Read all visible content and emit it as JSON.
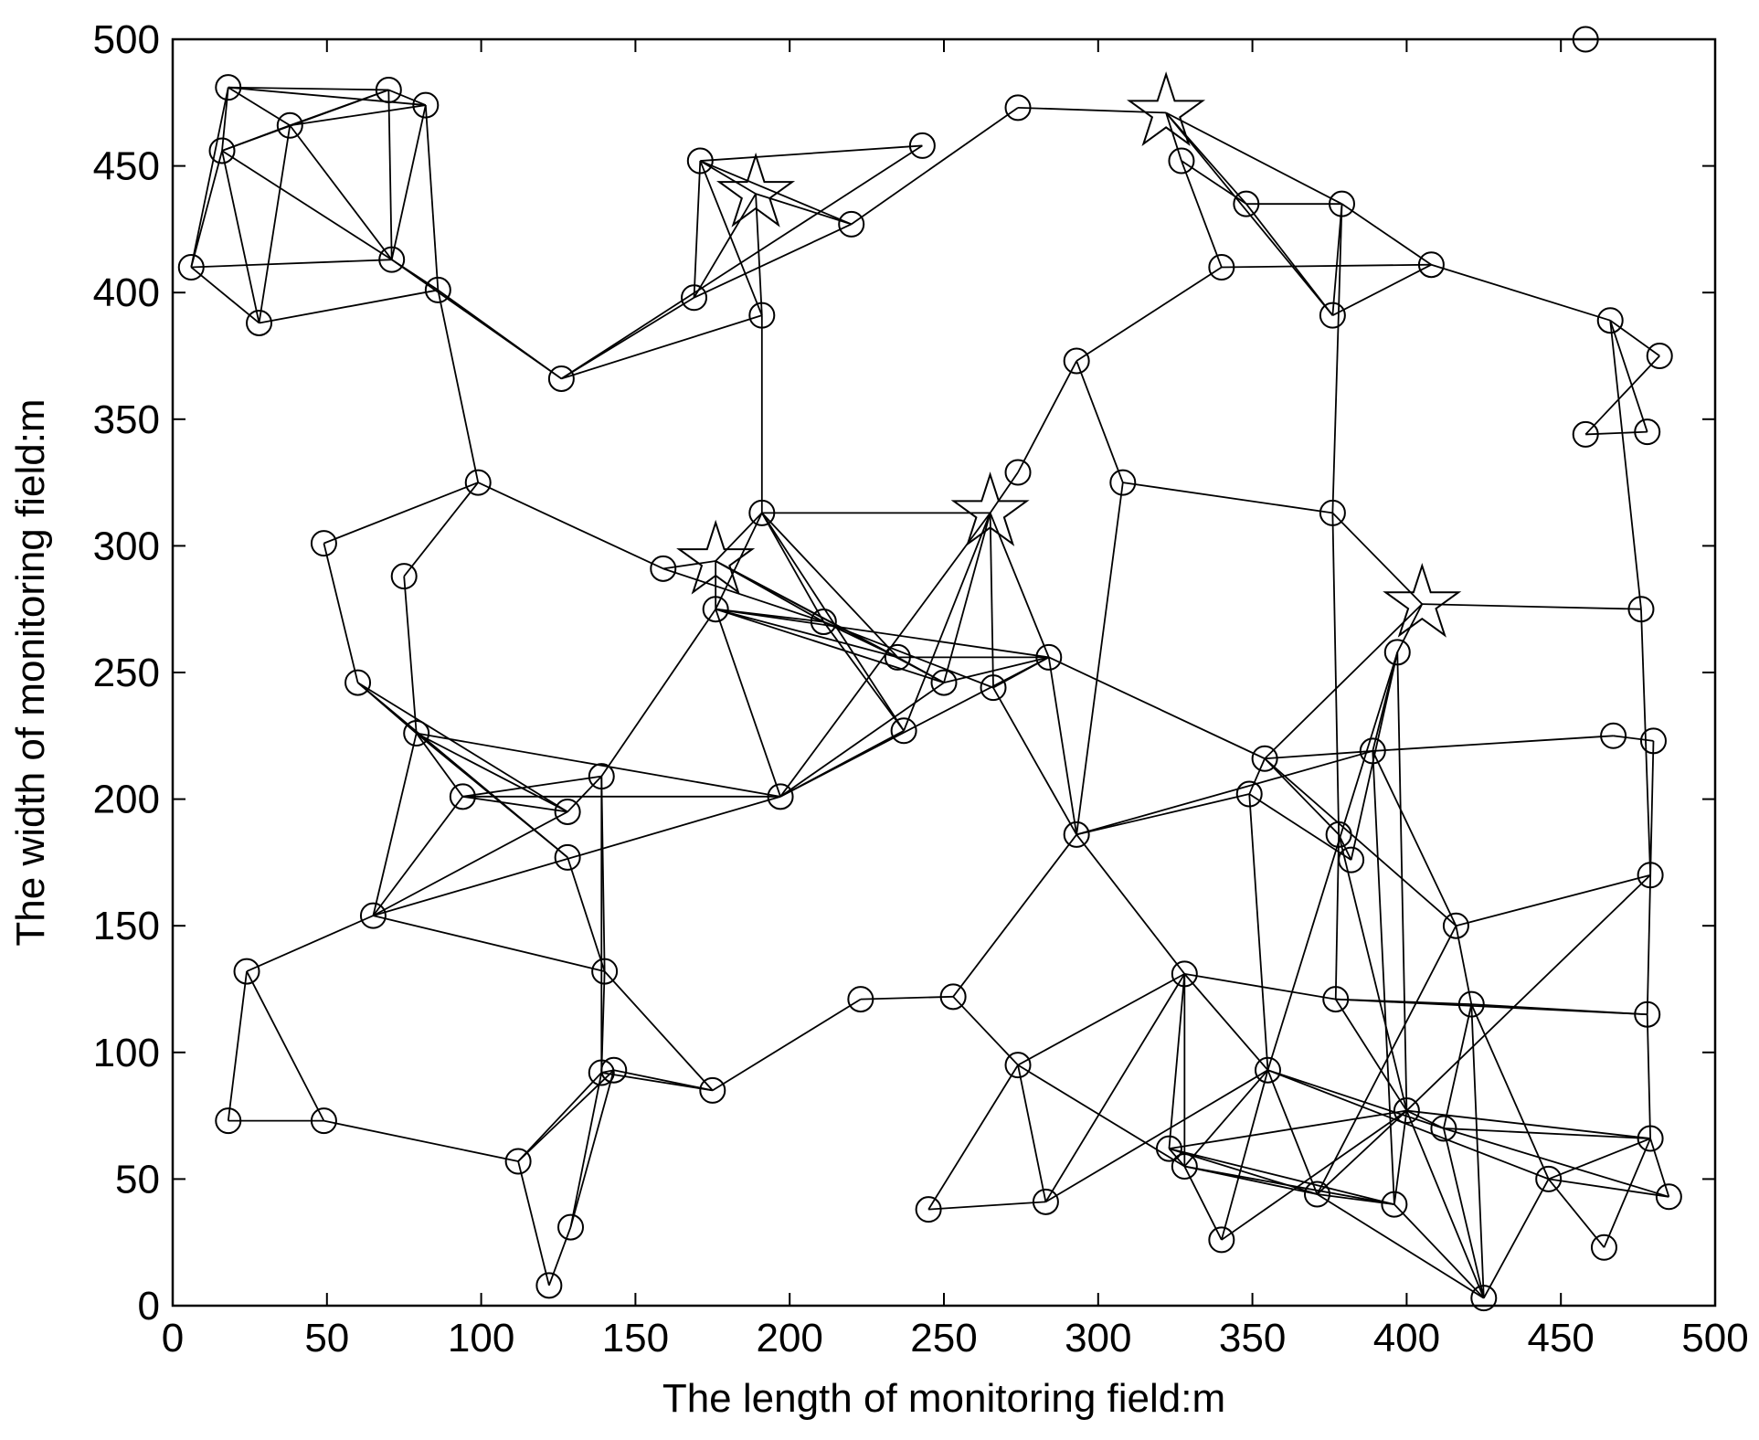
{
  "chart_data": {
    "type": "scatter",
    "xlabel": "The length of monitoring field:m",
    "ylabel": "The width of monitoring field:m",
    "xlim": [
      0,
      500
    ],
    "ylim": [
      0,
      500
    ],
    "xticks": [
      0,
      50,
      100,
      150,
      200,
      250,
      300,
      350,
      400,
      450,
      500
    ],
    "yticks": [
      0,
      50,
      100,
      150,
      200,
      250,
      300,
      350,
      400,
      450,
      500
    ],
    "series": [
      {
        "marker": "circle",
        "color": "#000000",
        "x": [
          18,
          70,
          82,
          38,
          16,
          6,
          71,
          28,
          86,
          126,
          99,
          49,
          75,
          60,
          79,
          94,
          128,
          139,
          128,
          65,
          140,
          24,
          18,
          49,
          112,
          139,
          143,
          175,
          129,
          122,
          171,
          169,
          191,
          220,
          243,
          274,
          159,
          191,
          176,
          211,
          235,
          250,
          266,
          284,
          237,
          197,
          274,
          293,
          308,
          293,
          327,
          348,
          340,
          379,
          376,
          408,
          466,
          482,
          458,
          478,
          376,
          476,
          397,
          354,
          349,
          389,
          467,
          480,
          378,
          382,
          416,
          479,
          328,
          223,
          253,
          377,
          421,
          478,
          274,
          355,
          400,
          412,
          323,
          328,
          479,
          446,
          371,
          396,
          283,
          245,
          340,
          464,
          485,
          425,
          458
        ],
        "values": [
          481,
          480,
          474,
          466,
          456,
          410,
          413,
          388,
          401,
          366,
          325,
          301,
          288,
          246,
          226,
          201,
          195,
          209,
          177,
          154,
          132,
          132,
          73,
          73,
          57,
          92,
          93,
          85,
          31,
          8,
          452,
          398,
          391,
          427,
          458,
          473,
          291,
          313,
          275,
          270,
          256,
          246,
          244,
          256,
          227,
          201,
          329,
          373,
          325,
          186,
          452,
          435,
          410,
          435,
          391,
          411,
          389,
          375,
          344,
          345,
          313,
          275,
          258,
          216,
          202,
          219,
          225,
          223,
          186,
          176,
          150,
          170,
          131,
          121,
          122,
          121,
          119,
          115,
          95,
          93,
          77,
          70,
          62,
          55,
          66,
          50,
          44,
          40,
          41,
          38,
          26,
          23,
          43,
          3,
          500
        ]
      },
      {
        "marker": "star",
        "color": "#000000",
        "x": [
          322,
          189,
          176,
          265,
          405
        ],
        "values": [
          471,
          439,
          294,
          313,
          277
        ]
      }
    ],
    "edges": [
      [
        0,
        1
      ],
      [
        0,
        2
      ],
      [
        0,
        3
      ],
      [
        0,
        4
      ],
      [
        0,
        5
      ],
      [
        1,
        2
      ],
      [
        1,
        3
      ],
      [
        1,
        4
      ],
      [
        1,
        6
      ],
      [
        2,
        3
      ],
      [
        2,
        6
      ],
      [
        2,
        8
      ],
      [
        3,
        4
      ],
      [
        3,
        7
      ],
      [
        3,
        6
      ],
      [
        4,
        5
      ],
      [
        4,
        7
      ],
      [
        4,
        6
      ],
      [
        5,
        6
      ],
      [
        5,
        7
      ],
      [
        6,
        8
      ],
      [
        6,
        9
      ],
      [
        7,
        8
      ],
      [
        8,
        9
      ],
      [
        8,
        10
      ],
      [
        10,
        12
      ],
      [
        10,
        36
      ],
      [
        9,
        31
      ],
      [
        9,
        32
      ],
      [
        9,
        34
      ],
      [
        11,
        10
      ],
      [
        11,
        13
      ],
      [
        12,
        14
      ],
      [
        13,
        14
      ],
      [
        13,
        16
      ],
      [
        13,
        18
      ],
      [
        14,
        15
      ],
      [
        14,
        16
      ],
      [
        14,
        18
      ],
      [
        14,
        19
      ],
      [
        14,
        45
      ],
      [
        15,
        16
      ],
      [
        15,
        17
      ],
      [
        15,
        19
      ],
      [
        15,
        45
      ],
      [
        16,
        17
      ],
      [
        16,
        19
      ],
      [
        17,
        38
      ],
      [
        17,
        20
      ],
      [
        17,
        25
      ],
      [
        18,
        20
      ],
      [
        19,
        45
      ],
      [
        19,
        21
      ],
      [
        19,
        20
      ],
      [
        21,
        22
      ],
      [
        21,
        23
      ],
      [
        22,
        23
      ],
      [
        23,
        24
      ],
      [
        24,
        25
      ],
      [
        24,
        26
      ],
      [
        24,
        29
      ],
      [
        25,
        26
      ],
      [
        25,
        28
      ],
      [
        25,
        27
      ],
      [
        26,
        27
      ],
      [
        26,
        28
      ],
      [
        20,
        25
      ],
      [
        20,
        27
      ],
      [
        27,
        73
      ],
      [
        28,
        29
      ],
      [
        30,
        31
      ],
      [
        30,
        33
      ],
      [
        30,
        34
      ],
      [
        30,
        96
      ],
      [
        30,
        32
      ],
      [
        31,
        96
      ],
      [
        31,
        33
      ],
      [
        32,
        96
      ],
      [
        32,
        37
      ],
      [
        96,
        33
      ],
      [
        33,
        35
      ],
      [
        35,
        95
      ],
      [
        95,
        50
      ],
      [
        95,
        51
      ],
      [
        95,
        53
      ],
      [
        95,
        54
      ],
      [
        50,
        52
      ],
      [
        50,
        51
      ],
      [
        51,
        53
      ],
      [
        51,
        54
      ],
      [
        52,
        55
      ],
      [
        53,
        55
      ],
      [
        53,
        54
      ],
      [
        53,
        60
      ],
      [
        54,
        55
      ],
      [
        55,
        56
      ],
      [
        52,
        47
      ],
      [
        47,
        46
      ],
      [
        47,
        48
      ],
      [
        46,
        98
      ],
      [
        48,
        60
      ],
      [
        48,
        49
      ],
      [
        60,
        99
      ],
      [
        36,
        97
      ],
      [
        36,
        39
      ],
      [
        37,
        97
      ],
      [
        37,
        38
      ],
      [
        37,
        39
      ],
      [
        37,
        44
      ],
      [
        37,
        40
      ],
      [
        37,
        98
      ],
      [
        97,
        38
      ],
      [
        97,
        39
      ],
      [
        97,
        40
      ],
      [
        97,
        41
      ],
      [
        38,
        39
      ],
      [
        38,
        40
      ],
      [
        38,
        41
      ],
      [
        38,
        43
      ],
      [
        38,
        45
      ],
      [
        39,
        40
      ],
      [
        39,
        42
      ],
      [
        39,
        44
      ],
      [
        40,
        43
      ],
      [
        40,
        41
      ],
      [
        41,
        98
      ],
      [
        41,
        43
      ],
      [
        41,
        45
      ],
      [
        42,
        43
      ],
      [
        42,
        49
      ],
      [
        42,
        98
      ],
      [
        43,
        45
      ],
      [
        43,
        98
      ],
      [
        43,
        49
      ],
      [
        43,
        63
      ],
      [
        44,
        45
      ],
      [
        44,
        98
      ],
      [
        45,
        98
      ],
      [
        49,
        72
      ],
      [
        49,
        64
      ],
      [
        49,
        65
      ],
      [
        49,
        74
      ],
      [
        72,
        78
      ],
      [
        72,
        79
      ],
      [
        72,
        82
      ],
      [
        72,
        75
      ],
      [
        72,
        83
      ],
      [
        72,
        88
      ],
      [
        73,
        74
      ],
      [
        74,
        78
      ],
      [
        75,
        80
      ],
      [
        75,
        76
      ],
      [
        75,
        77
      ],
      [
        75,
        68
      ],
      [
        68,
        63
      ],
      [
        68,
        69
      ],
      [
        68,
        60
      ],
      [
        68,
        80
      ],
      [
        63,
        64
      ],
      [
        63,
        65
      ],
      [
        63,
        70
      ],
      [
        63,
        99
      ],
      [
        64,
        69
      ],
      [
        64,
        79
      ],
      [
        62,
        99
      ],
      [
        99,
        61
      ],
      [
        62,
        65
      ],
      [
        62,
        80
      ],
      [
        62,
        79
      ],
      [
        62,
        69
      ],
      [
        65,
        66
      ],
      [
        65,
        87
      ],
      [
        65,
        70
      ],
      [
        70,
        71
      ],
      [
        70,
        76
      ],
      [
        70,
        86
      ],
      [
        66,
        67
      ],
      [
        61,
        56
      ],
      [
        61,
        71
      ],
      [
        56,
        59
      ],
      [
        56,
        57
      ],
      [
        57,
        58
      ],
      [
        58,
        59
      ],
      [
        67,
        77
      ],
      [
        71,
        80
      ],
      [
        76,
        77
      ],
      [
        76,
        81
      ],
      [
        76,
        93
      ],
      [
        76,
        85
      ],
      [
        77,
        84
      ],
      [
        84,
        92
      ],
      [
        84,
        91
      ],
      [
        84,
        85
      ],
      [
        84,
        80
      ],
      [
        84,
        81
      ],
      [
        85,
        93
      ],
      [
        85,
        91
      ],
      [
        85,
        92
      ],
      [
        81,
        92
      ],
      [
        81,
        93
      ],
      [
        80,
        81
      ],
      [
        80,
        87
      ],
      [
        80,
        86
      ],
      [
        80,
        82
      ],
      [
        80,
        90
      ],
      [
        80,
        93
      ],
      [
        79,
        86
      ],
      [
        79,
        90
      ],
      [
        79,
        81
      ],
      [
        79,
        85
      ],
      [
        79,
        83
      ],
      [
        82,
        83
      ],
      [
        82,
        86
      ],
      [
        82,
        87
      ],
      [
        83,
        86
      ],
      [
        83,
        87
      ],
      [
        83,
        90
      ],
      [
        86,
        87
      ],
      [
        86,
        93
      ],
      [
        87,
        93
      ],
      [
        88,
        78
      ],
      [
        88,
        79
      ],
      [
        89,
        78
      ],
      [
        89,
        88
      ],
      [
        78,
        83
      ]
    ]
  }
}
